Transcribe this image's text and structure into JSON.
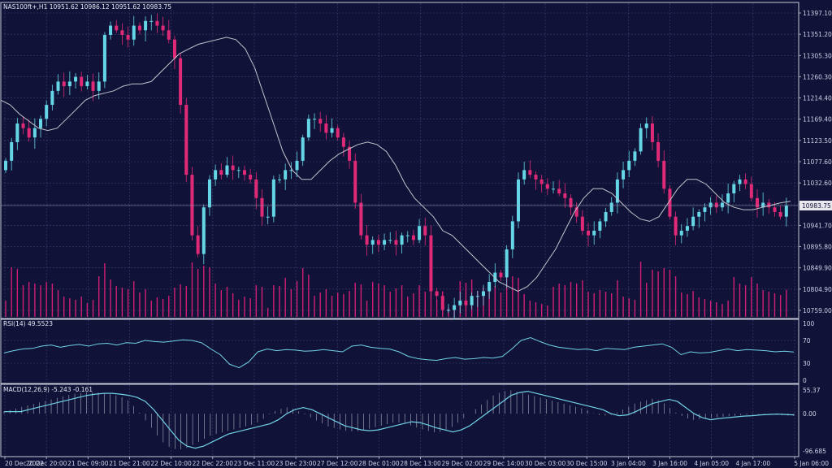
{
  "main_title": "NAS100ft+,H1  10951.62 10986.12 10951.62 10983.75",
  "colors": {
    "background": "#101238",
    "bull": "#65d6e6",
    "bear": "#e02a77",
    "ma": "#c4c4cc",
    "volume": "#d11f73",
    "rsi": "#71d2e6",
    "macd_line": "#71d2e6",
    "macd_hist": "#9a9cb0"
  },
  "price_axis": {
    "ticks": [
      "11397.10",
      "11351.20",
      "11305.30",
      "11260.30",
      "11214.40",
      "11169.40",
      "11123.50",
      "11077.60",
      "11032.60",
      "10986.70",
      "10941.70",
      "10895.80",
      "10849.90",
      "10804.90",
      "10759.00"
    ],
    "current_label": "10983.75",
    "ylim": [
      10735,
      11420
    ]
  },
  "rsi_panel": {
    "title": "RSI(14) 49.5523",
    "ticks": [
      "100",
      "70",
      "30",
      "0"
    ]
  },
  "macd_panel": {
    "title": "MACD(12,26,9) -5.243 -0.161",
    "ticks": [
      "55.37",
      "0.00",
      "-96.685"
    ]
  },
  "time_axis": [
    "20 Dec 2022",
    "20 Dec 20:00",
    "21 Dec 09:00",
    "21 Dec 21:00",
    "22 Dec 10:00",
    "22 Dec 22:00",
    "23 Dec 11:00",
    "23 Dec 23:00",
    "27 Dec 12:00",
    "28 Dec 01:00",
    "28 Dec 13:00",
    "29 Dec 02:00",
    "29 Dec 14:00",
    "30 Dec 03:00",
    "30 Dec 15:00",
    "3 Jan 04:00",
    "3 Jan 16:00",
    "4 Jan 05:00",
    "4 Jan 17:00",
    "5 Jan 06:00"
  ],
  "chart_data": {
    "type": "candlestick",
    "close_path": [
      11080,
      11120,
      11160,
      11150,
      11130,
      11150,
      11170,
      11200,
      11230,
      11250,
      11240,
      11250,
      11260,
      11240,
      11250,
      11230,
      11250,
      11350,
      11370,
      11360,
      11350,
      11340,
      11370,
      11360,
      11380,
      11380,
      11370,
      11360,
      11340,
      11300,
      11200,
      11050,
      10920,
      10880,
      10980,
      11040,
      11060,
      11050,
      11070,
      11060,
      11060,
      11050,
      11040,
      11000,
      10960,
      10960,
      11040,
      11040,
      11060,
      11060,
      11080,
      11130,
      11170,
      11170,
      11160,
      11140,
      11150,
      11130,
      11110,
      11080,
      10990,
      10920,
      10900,
      10910,
      10900,
      10910,
      10910,
      10900,
      10920,
      10920,
      10910,
      10940,
      10920,
      10800,
      10790,
      10760,
      10760,
      10770,
      10780,
      10770,
      10790,
      10790,
      10800,
      10820,
      10840,
      10830,
      10890,
      10950,
      11040,
      11060,
      11050,
      11040,
      11030,
      11020,
      11020,
      11010,
      11000,
      10980,
      10960,
      10930,
      10920,
      10930,
      10950,
      10970,
      10990,
      11040,
      11060,
      11080,
      11100,
      11150,
      11160,
      11120,
      11080,
      11020,
      10960,
      10920,
      10930,
      10940,
      10960,
      10970,
      10980,
      10990,
      10980,
      10990,
      11010,
      11030,
      11040,
      11030,
      11000,
      10980,
      10990,
      10980,
      10970,
      10960,
      10984
    ],
    "ma_path": [
      11210,
      11200,
      11180,
      11165,
      11150,
      11145,
      11150,
      11170,
      11190,
      11210,
      11220,
      11225,
      11230,
      11240,
      11245,
      11245,
      11250,
      11270,
      11290,
      11310,
      11320,
      11330,
      11335,
      11340,
      11345,
      11340,
      11320,
      11280,
      11220,
      11160,
      11100,
      11060,
      11040,
      11040,
      11060,
      11080,
      11095,
      11105,
      11115,
      11120,
      11115,
      11100,
      11070,
      11030,
      11000,
      10980,
      10960,
      10930,
      10920,
      10900,
      10880,
      10860,
      10840,
      10820,
      10810,
      10800,
      10810,
      10830,
      10860,
      10890,
      10930,
      10970,
      11000,
      11020,
      11020,
      11010,
      10990,
      10970,
      10955,
      10950,
      10960,
      10990,
      11020,
      11040,
      11040,
      11030,
      11010,
      10990,
      10980,
      10975,
      10975,
      10980,
      10985,
      10990,
      10993
    ],
    "rsi_path": [
      48,
      52,
      55,
      56,
      60,
      62,
      58,
      61,
      63,
      60,
      64,
      65,
      62,
      66,
      65,
      70,
      68,
      67,
      69,
      71,
      70,
      66,
      55,
      45,
      28,
      22,
      32,
      50,
      55,
      52,
      54,
      53,
      51,
      52,
      54,
      52,
      50,
      60,
      62,
      58,
      56,
      55,
      50,
      42,
      38,
      36,
      35,
      38,
      40,
      37,
      38,
      40,
      39,
      42,
      55,
      70,
      75,
      68,
      62,
      58,
      56,
      54,
      55,
      52,
      56,
      55,
      54,
      58,
      60,
      62,
      64,
      58,
      45,
      50,
      48,
      49,
      52,
      55,
      52,
      54,
      53,
      52,
      50,
      51,
      49.55
    ],
    "macd_path": [
      5,
      10,
      15,
      20,
      25,
      30,
      35,
      40,
      45,
      48,
      50,
      50,
      48,
      45,
      40,
      30,
      10,
      -15,
      -40,
      -65,
      -80,
      -85,
      -80,
      -70,
      -60,
      -50,
      -45,
      -40,
      -35,
      -30,
      -25,
      -15,
      0,
      10,
      15,
      10,
      0,
      -10,
      -20,
      -30,
      -35,
      -40,
      -42,
      -40,
      -35,
      -30,
      -25,
      -20,
      -22,
      -28,
      -35,
      -40,
      -45,
      -40,
      -30,
      -15,
      0,
      15,
      30,
      45,
      52,
      55,
      50,
      45,
      40,
      35,
      30,
      25,
      20,
      15,
      10,
      0,
      -5,
      -3,
      5,
      15,
      25,
      30,
      35,
      30,
      15,
      0,
      -10,
      -15,
      -12,
      -10,
      -8,
      -6,
      -5,
      -3,
      -2,
      -1,
      -2,
      -3,
      -4,
      -5.24
    ],
    "macd_ylim": [
      -96.685,
      55.37
    ]
  }
}
